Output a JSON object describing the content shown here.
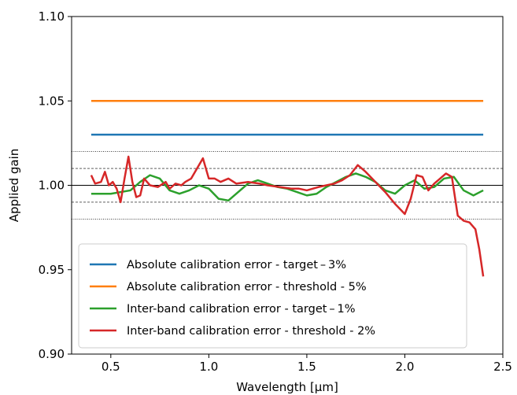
{
  "chart_data": {
    "type": "line",
    "xlabel": "Wavelength [μm]",
    "ylabel": "Applied gain",
    "xlim": [
      0.3,
      2.5
    ],
    "ylim": [
      0.9,
      1.1
    ],
    "x_ticks": [
      "0.5",
      "1.0",
      "1.5",
      "2.0",
      "2.5"
    ],
    "y_ticks": [
      "0.90",
      "0.95",
      "1.00",
      "1.05",
      "1.10"
    ],
    "grid": false,
    "legend_position": "lower-left",
    "reference_lines": [
      {
        "y": 1.0,
        "style": "solid"
      },
      {
        "y": 1.01,
        "style": "dashed"
      },
      {
        "y": 0.99,
        "style": "dashed"
      },
      {
        "y": 1.02,
        "style": "dotted"
      },
      {
        "y": 0.98,
        "style": "dotted"
      }
    ],
    "series": [
      {
        "name": "Absolute calibration error  - target – 3%",
        "color": "#1f77b4",
        "x": [
          0.4,
          2.4
        ],
        "y": [
          1.03,
          1.03
        ]
      },
      {
        "name": "Absolute calibration error - threshold - 5%",
        "color": "#ff7f0e",
        "x": [
          0.4,
          2.4
        ],
        "y": [
          1.05,
          1.05
        ]
      },
      {
        "name": "Inter-band calibration error  - target – 1%",
        "color": "#2ca02c",
        "x": [
          0.4,
          0.5,
          0.6,
          0.65,
          0.7,
          0.75,
          0.8,
          0.85,
          0.9,
          0.95,
          1.0,
          1.05,
          1.1,
          1.15,
          1.2,
          1.25,
          1.3,
          1.35,
          1.4,
          1.45,
          1.5,
          1.55,
          1.6,
          1.65,
          1.7,
          1.75,
          1.8,
          1.85,
          1.9,
          1.95,
          2.0,
          2.05,
          2.1,
          2.15,
          2.2,
          2.25,
          2.3,
          2.35,
          2.4
        ],
        "y": [
          0.995,
          0.995,
          0.997,
          1.002,
          1.006,
          1.004,
          0.997,
          0.995,
          0.997,
          1.0,
          0.998,
          0.992,
          0.991,
          0.996,
          1.001,
          1.003,
          1.001,
          0.999,
          0.998,
          0.996,
          0.994,
          0.995,
          0.999,
          1.002,
          1.005,
          1.007,
          1.005,
          1.002,
          0.997,
          0.995,
          1.0,
          1.003,
          0.998,
          0.999,
          1.004,
          1.005,
          0.997,
          0.994,
          0.997
        ]
      },
      {
        "name": "Inter-band calibration error - threshold - 2%",
        "color": "#d62728",
        "x": [
          0.4,
          0.42,
          0.45,
          0.47,
          0.49,
          0.51,
          0.53,
          0.55,
          0.57,
          0.59,
          0.61,
          0.63,
          0.65,
          0.67,
          0.7,
          0.74,
          0.78,
          0.8,
          0.83,
          0.86,
          0.88,
          0.91,
          0.94,
          0.97,
          1.0,
          1.03,
          1.06,
          1.1,
          1.14,
          1.2,
          1.26,
          1.3,
          1.36,
          1.42,
          1.46,
          1.5,
          1.56,
          1.6,
          1.64,
          1.68,
          1.72,
          1.76,
          1.8,
          1.85,
          1.9,
          1.95,
          2.0,
          2.03,
          2.06,
          2.09,
          2.12,
          2.15,
          2.18,
          2.21,
          2.24,
          2.27,
          2.3,
          2.33,
          2.36,
          2.38,
          2.4
        ],
        "y": [
          1.006,
          1.001,
          1.002,
          1.008,
          1.0,
          1.002,
          0.998,
          0.99,
          1.004,
          1.017,
          1.002,
          0.993,
          0.994,
          1.004,
          1.0,
          0.999,
          1.002,
          0.998,
          1.001,
          1.0,
          1.002,
          1.004,
          1.01,
          1.016,
          1.004,
          1.004,
          1.002,
          1.004,
          1.001,
          1.002,
          1.001,
          1.0,
          0.999,
          0.998,
          0.998,
          0.997,
          0.999,
          1.0,
          1.001,
          1.003,
          1.006,
          1.012,
          1.008,
          1.002,
          0.996,
          0.989,
          0.983,
          0.992,
          1.006,
          1.005,
          0.997,
          1.001,
          1.004,
          1.007,
          1.005,
          0.982,
          0.979,
          0.978,
          0.974,
          0.962,
          0.946
        ]
      }
    ]
  }
}
